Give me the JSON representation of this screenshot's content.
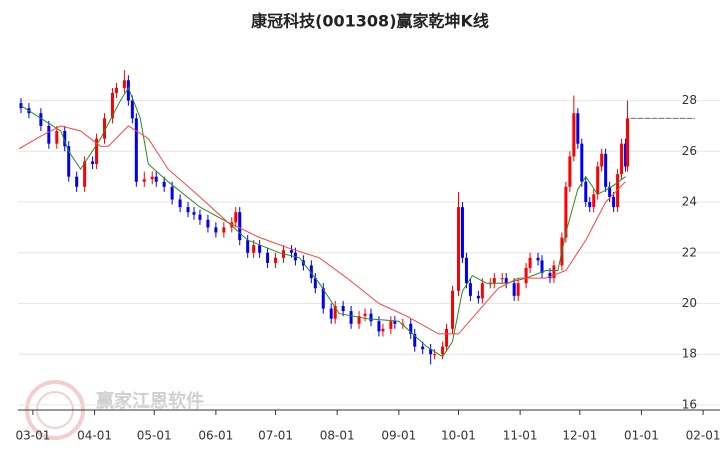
{
  "chart_data": {
    "type": "candlestick",
    "title": "康冠科技(001308)赢家乾坤K线",
    "watermark": "赢家江恩软件",
    "up_color": "#ff0000",
    "down_color": "#0000ee",
    "grid": true,
    "xlim": [
      -7.5,
      345.5
    ],
    "ylim": [
      15.8,
      29.6
    ],
    "xticks": [
      {
        "value": 0,
        "label": "03-01"
      },
      {
        "value": 31,
        "label": "04-01"
      },
      {
        "value": 61,
        "label": "05-01"
      },
      {
        "value": 92,
        "label": "06-01"
      },
      {
        "value": 122,
        "label": "07-01"
      },
      {
        "value": 153,
        "label": "08-01"
      },
      {
        "value": 184,
        "label": "09-01"
      },
      {
        "value": 214,
        "label": "10-01"
      },
      {
        "value": 245,
        "label": "11-01"
      },
      {
        "value": 275,
        "label": "12-01"
      },
      {
        "value": 306,
        "label": "01-01"
      },
      {
        "value": 337,
        "label": "02-01"
      }
    ],
    "yticks": [
      16,
      18,
      20,
      22,
      24,
      26,
      28
    ],
    "x": [
      -6,
      -2,
      4,
      8,
      12,
      16,
      18,
      22,
      26,
      30,
      32,
      36,
      40,
      42,
      46,
      48,
      50,
      52,
      56,
      60,
      62,
      66,
      70,
      74,
      78,
      81,
      84,
      88,
      92,
      96,
      100,
      102,
      104,
      108,
      111,
      114,
      118,
      122,
      126,
      130,
      132,
      136,
      140,
      142,
      146,
      150,
      152,
      156,
      160,
      164,
      167,
      170,
      174,
      176,
      180,
      182,
      186,
      190,
      192,
      196,
      200,
      202,
      206,
      208,
      211,
      214,
      216,
      218,
      220,
      224,
      226,
      230,
      232,
      236,
      238,
      242,
      244,
      248,
      250,
      254,
      256,
      260,
      262,
      266,
      268,
      270,
      272,
      274,
      276,
      278,
      280,
      282,
      284,
      286,
      288,
      290,
      292,
      294,
      296,
      298,
      299
    ],
    "open": [
      27.9,
      27.7,
      27.5,
      27.0,
      26.3,
      26.8,
      26.2,
      25.0,
      24.6,
      25.6,
      25.5,
      26.5,
      27.3,
      28.3,
      28.5,
      28.8,
      28.0,
      27.3,
      24.8,
      24.9,
      25.0,
      24.8,
      24.6,
      24.1,
      23.8,
      23.6,
      23.5,
      23.3,
      23.0,
      22.8,
      23.0,
      23.2,
      23.6,
      22.5,
      22.0,
      22.3,
      22.0,
      21.6,
      21.8,
      22.1,
      22.0,
      21.7,
      21.5,
      21.0,
      20.6,
      19.8,
      19.4,
      19.9,
      19.7,
      19.2,
      19.5,
      19.6,
      19.3,
      18.9,
      19.0,
      19.3,
      19.2,
      19.2,
      18.8,
      18.3,
      18.2,
      18.0,
      18.0,
      18.3,
      19.0,
      20.5,
      23.8,
      21.8,
      20.8,
      20.3,
      20.2,
      20.8,
      20.8,
      21.0,
      21.0,
      20.8,
      20.3,
      20.8,
      21.4,
      21.8,
      21.7,
      21.2,
      21.0,
      21.5,
      22.6,
      24.6,
      25.8,
      27.5,
      26.3,
      24.8,
      24.0,
      23.8,
      24.3,
      25.4,
      25.9,
      24.6,
      24.2,
      23.8,
      25.1,
      26.3,
      25.4
    ],
    "high": [
      28.1,
      27.9,
      27.7,
      27.2,
      27.0,
      27.0,
      26.4,
      25.2,
      25.8,
      25.8,
      26.7,
      27.5,
      28.5,
      28.7,
      29.2,
      29.0,
      28.2,
      27.5,
      25.2,
      25.2,
      25.2,
      25.0,
      24.8,
      24.3,
      24.0,
      23.8,
      23.7,
      23.5,
      23.2,
      23.2,
      23.4,
      23.8,
      23.8,
      22.7,
      22.5,
      22.5,
      22.2,
      22.0,
      22.3,
      22.3,
      22.2,
      21.9,
      21.7,
      21.2,
      20.8,
      20.0,
      20.1,
      20.1,
      19.9,
      19.7,
      19.8,
      19.8,
      19.5,
      19.2,
      19.5,
      19.5,
      19.4,
      19.4,
      19.0,
      18.5,
      18.4,
      18.2,
      18.5,
      19.2,
      20.7,
      24.4,
      24.0,
      22.0,
      21.0,
      20.5,
      21.0,
      21.0,
      21.2,
      21.2,
      21.2,
      21.0,
      21.0,
      21.6,
      22.0,
      22.0,
      21.9,
      21.4,
      21.7,
      22.8,
      24.8,
      26.0,
      28.2,
      27.7,
      26.5,
      25.0,
      24.2,
      24.5,
      25.6,
      26.1,
      26.1,
      24.8,
      24.4,
      25.3,
      26.5,
      26.5,
      28.0
    ],
    "low": [
      27.5,
      27.3,
      26.8,
      26.1,
      26.1,
      26.0,
      24.8,
      24.4,
      24.4,
      25.3,
      25.3,
      26.3,
      27.1,
      28.1,
      28.3,
      27.8,
      27.1,
      24.6,
      24.6,
      24.7,
      24.6,
      24.4,
      23.9,
      23.6,
      23.4,
      23.3,
      23.1,
      22.8,
      22.6,
      22.6,
      22.8,
      23.0,
      22.3,
      21.8,
      21.8,
      21.8,
      21.4,
      21.4,
      21.6,
      21.8,
      21.5,
      21.3,
      20.8,
      20.4,
      19.6,
      19.2,
      19.2,
      19.5,
      19.0,
      19.0,
      19.3,
      19.1,
      18.7,
      18.7,
      18.8,
      19.0,
      19.0,
      18.6,
      18.1,
      18.0,
      17.6,
      17.8,
      17.8,
      18.1,
      18.8,
      20.3,
      21.6,
      20.6,
      20.1,
      20.0,
      20.0,
      20.6,
      20.6,
      20.8,
      20.6,
      20.1,
      20.1,
      20.6,
      21.2,
      21.5,
      21.0,
      20.8,
      20.8,
      21.3,
      22.4,
      24.4,
      25.6,
      26.1,
      24.6,
      23.8,
      23.6,
      23.6,
      24.1,
      25.2,
      24.4,
      24.0,
      23.6,
      23.6,
      24.9,
      25.2,
      25.2
    ],
    "close": [
      27.7,
      27.5,
      27.0,
      26.3,
      26.8,
      26.2,
      25.0,
      24.6,
      25.6,
      25.5,
      26.5,
      27.3,
      28.3,
      28.5,
      28.8,
      28.0,
      27.3,
      24.8,
      24.9,
      25.0,
      24.8,
      24.6,
      24.1,
      23.8,
      23.6,
      23.5,
      23.3,
      23.0,
      22.8,
      23.0,
      23.2,
      23.6,
      22.5,
      22.0,
      22.3,
      22.0,
      21.6,
      21.8,
      22.1,
      22.0,
      21.7,
      21.5,
      21.0,
      20.6,
      19.8,
      19.4,
      19.9,
      19.7,
      19.2,
      19.5,
      19.6,
      19.3,
      18.9,
      19.0,
      19.3,
      19.2,
      19.2,
      18.8,
      18.3,
      18.2,
      18.0,
      18.0,
      18.3,
      19.0,
      20.5,
      23.8,
      21.8,
      20.8,
      20.3,
      20.2,
      20.8,
      20.8,
      21.0,
      21.0,
      20.8,
      20.3,
      20.8,
      21.4,
      21.8,
      21.7,
      21.2,
      21.0,
      21.5,
      22.6,
      24.6,
      25.8,
      27.5,
      26.3,
      24.8,
      24.0,
      23.8,
      24.3,
      25.4,
      25.9,
      24.6,
      24.2,
      23.8,
      25.1,
      26.3,
      25.4,
      27.3
    ],
    "lines": [
      {
        "color": "#2a8a2a",
        "x": [
          -6,
          4,
          14,
          18,
          24,
          34,
          44,
          48,
          54,
          58,
          68,
          84,
          98,
          108,
          124,
          134,
          144,
          154,
          168,
          184,
          198,
          206,
          211,
          216,
          221,
          228,
          238,
          248,
          258,
          264,
          268,
          274,
          278,
          284,
          291,
          298
        ],
        "values": [
          27.8,
          27.3,
          26.8,
          26.0,
          25.3,
          26.5,
          28.0,
          28.5,
          27.3,
          25.5,
          24.8,
          23.8,
          23.2,
          22.5,
          22.0,
          21.8,
          20.8,
          19.6,
          19.4,
          19.3,
          18.3,
          17.9,
          18.5,
          20.5,
          21.1,
          20.8,
          20.8,
          21.0,
          21.3,
          21.3,
          22.8,
          24.5,
          25.0,
          24.3,
          24.6,
          25.0
        ]
      },
      {
        "color": "#ff4040",
        "x": [
          -7,
          4,
          14,
          24,
          34,
          38,
          48,
          58,
          68,
          84,
          98,
          114,
          128,
          144,
          158,
          174,
          188,
          204,
          214,
          224,
          234,
          244,
          258,
          268,
          278,
          288,
          298
        ],
        "values": [
          26.1,
          26.6,
          27.0,
          26.8,
          26.2,
          26.2,
          27.0,
          26.5,
          25.3,
          24.2,
          23.2,
          22.6,
          22.2,
          21.8,
          21.0,
          20.0,
          19.5,
          18.8,
          18.8,
          19.7,
          20.6,
          21.0,
          21.0,
          21.3,
          22.5,
          24.0,
          24.8
        ]
      }
    ]
  }
}
